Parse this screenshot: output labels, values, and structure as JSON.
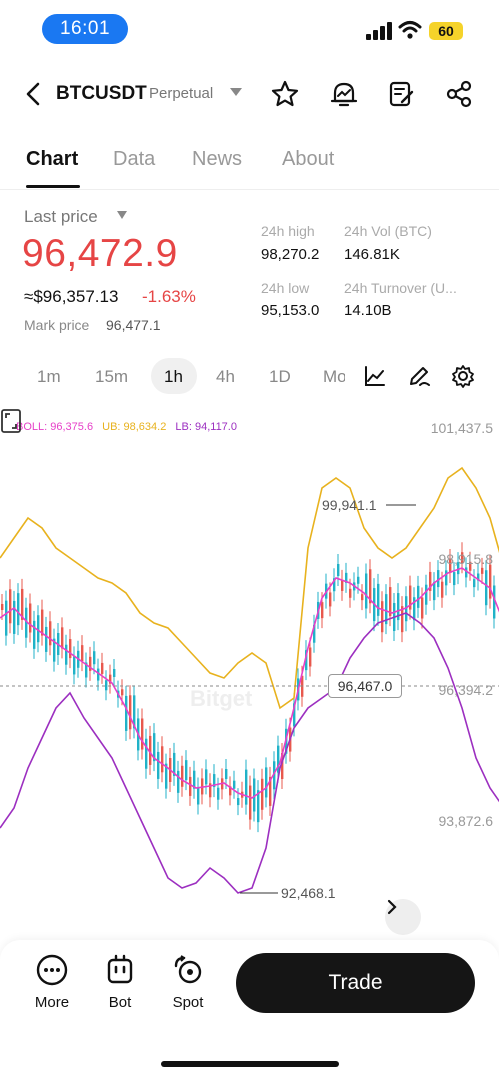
{
  "status_bar": {
    "time": "16:01",
    "battery": "60"
  },
  "header": {
    "symbol": "BTCUSDT",
    "contract_type": "Perpetual"
  },
  "tabs": [
    {
      "label": "Chart",
      "active": true
    },
    {
      "label": "Data",
      "active": false
    },
    {
      "label": "News",
      "active": false
    },
    {
      "label": "About",
      "active": false
    }
  ],
  "price": {
    "last_price_label": "Last price",
    "last_price": "96,472.9",
    "usd_price": "≈$96,357.13",
    "change_pct": "-1.63%",
    "mark_price_label": "Mark price",
    "mark_price": "96,477.1"
  },
  "stats": {
    "high_label": "24h high",
    "high": "98,270.2",
    "vol_label": "24h Vol (BTC)",
    "vol": "146.81K",
    "low_label": "24h low",
    "low": "95,153.0",
    "turnover_label": "24h Turnover (U...",
    "turnover": "14.10B"
  },
  "timeframes": [
    "1m",
    "15m",
    "1h",
    "4h",
    "1D",
    "Mo"
  ],
  "active_timeframe": "1h",
  "indicator_legend": {
    "boll": "BOLL: 96,375.6",
    "ub": "UB: 98,634.2",
    "lb": "LB: 94,117.0"
  },
  "chart_data": {
    "type": "candlestick",
    "y_axis_labels": [
      "101,437.5",
      "98,915.8",
      "96,394.2",
      "93,872.6"
    ],
    "ylim": [
      91800,
      102100
    ],
    "visible_high": "99,941.1",
    "visible_low": "92,468.1",
    "last_price_line": "96,467.0",
    "watermark": "Bitget",
    "indicators": {
      "BOLL": 96375.6,
      "UB": 98634.2,
      "LB": 94117.0
    },
    "colors": {
      "up": "#20b2c8",
      "down": "#e8584d",
      "boll": "#e640c8",
      "ub": "#e8b21e",
      "lb": "#9c2fc0"
    }
  },
  "bottom_nav": {
    "more": "More",
    "bot": "Bot",
    "spot": "Spot",
    "trade": "Trade"
  }
}
